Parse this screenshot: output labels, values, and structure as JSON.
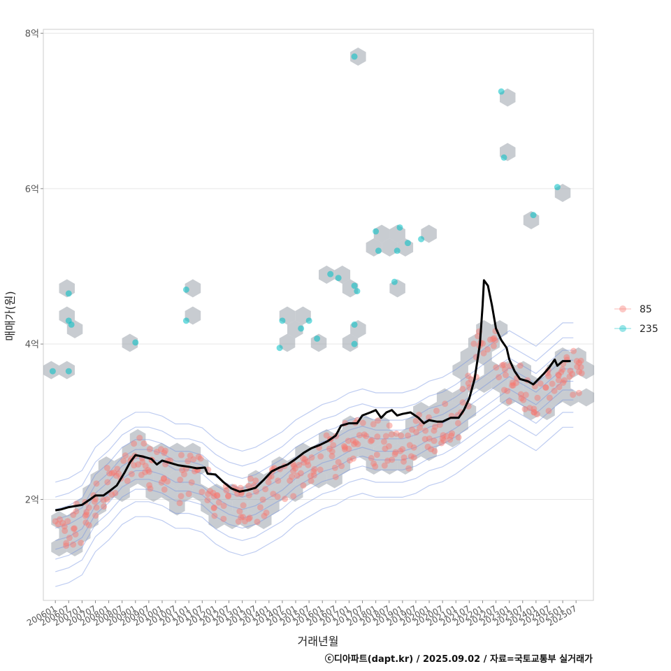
{
  "chart_data": {
    "type": "scatter",
    "xlabel": "거래년월",
    "ylabel": "매매가(원)",
    "credit": "ⓒ디아파트(dapt.kr) / 2025.09.02 / 자료=국토교통부 실거래가",
    "ylim": [
      0.7,
      8.05
    ],
    "xlim": [
      2005.55,
      2026.15
    ],
    "y_ticks": [
      {
        "value": 2,
        "label": "2억"
      },
      {
        "value": 4,
        "label": "4억"
      },
      {
        "value": 6,
        "label": "6억"
      },
      {
        "value": 8,
        "label": "8억"
      }
    ],
    "x_tick_labels": [
      "200601",
      "200607",
      "200701",
      "200707",
      "200801",
      "200807",
      "200901",
      "200907",
      "201001",
      "201007",
      "201101",
      "201107",
      "201201",
      "201207",
      "201301",
      "201307",
      "201401",
      "201407",
      "201501",
      "201507",
      "201601",
      "201607",
      "201701",
      "201707",
      "201801",
      "201807",
      "201901",
      "201907",
      "202001",
      "202007",
      "202101",
      "202107",
      "202201",
      "202207",
      "202301",
      "202307",
      "202401",
      "202407",
      "202501",
      "202507"
    ],
    "legend": [
      {
        "label": "85",
        "color": "#F8766D"
      },
      {
        "label": "235",
        "color": "#00BFC4"
      }
    ],
    "colors": {
      "hex": "#9aa3ab",
      "contour": "#6f8fe0",
      "trend": "#000000",
      "grid": "#e6e6e6"
    },
    "series_235": [
      [
        2005.9,
        3.65
      ],
      [
        2006.5,
        4.65
      ],
      [
        2006.5,
        4.3
      ],
      [
        2006.6,
        4.25
      ],
      [
        2006.5,
        3.65
      ],
      [
        2009.0,
        4.02
      ],
      [
        2010.9,
        4.7
      ],
      [
        2010.9,
        4.3
      ],
      [
        2014.5,
        4.3
      ],
      [
        2014.4,
        3.95
      ],
      [
        2015.2,
        4.2
      ],
      [
        2015.5,
        4.3
      ],
      [
        2015.8,
        4.07
      ],
      [
        2016.3,
        4.9
      ],
      [
        2016.6,
        4.85
      ],
      [
        2017.2,
        4.75
      ],
      [
        2017.3,
        4.68
      ],
      [
        2017.2,
        4.25
      ],
      [
        2017.2,
        4.0
      ],
      [
        2017.2,
        7.7
      ],
      [
        2018.0,
        5.45
      ],
      [
        2018.1,
        5.2
      ],
      [
        2018.8,
        5.2
      ],
      [
        2018.9,
        5.5
      ],
      [
        2019.2,
        5.3
      ],
      [
        2019.7,
        5.35
      ],
      [
        2018.7,
        4.8
      ],
      [
        2022.7,
        7.25
      ],
      [
        2022.8,
        6.4
      ],
      [
        2023.9,
        5.66
      ],
      [
        2024.8,
        6.02
      ]
    ],
    "series_85_bands": [
      [
        2006.0,
        1.55
      ],
      [
        2006.5,
        1.6
      ],
      [
        2007.0,
        1.7
      ],
      [
        2007.5,
        2.0
      ],
      [
        2008.0,
        2.15
      ],
      [
        2008.5,
        2.35
      ],
      [
        2009.0,
        2.45
      ],
      [
        2009.5,
        2.45
      ],
      [
        2010.0,
        2.4
      ],
      [
        2010.5,
        2.3
      ],
      [
        2011.0,
        2.3
      ],
      [
        2011.5,
        2.25
      ],
      [
        2012.0,
        2.1
      ],
      [
        2012.5,
        2.0
      ],
      [
        2013.0,
        1.95
      ],
      [
        2013.5,
        2.0
      ],
      [
        2014.0,
        2.1
      ],
      [
        2014.5,
        2.2
      ],
      [
        2015.0,
        2.35
      ],
      [
        2015.5,
        2.45
      ],
      [
        2016.0,
        2.55
      ],
      [
        2016.5,
        2.6
      ],
      [
        2017.0,
        2.7
      ],
      [
        2017.5,
        2.75
      ],
      [
        2018.0,
        2.7
      ],
      [
        2018.5,
        2.7
      ],
      [
        2019.0,
        2.7
      ],
      [
        2019.5,
        2.75
      ],
      [
        2020.0,
        2.85
      ],
      [
        2020.5,
        2.9
      ],
      [
        2021.0,
        3.0
      ],
      [
        2021.5,
        3.5
      ],
      [
        2022.0,
        4.2
      ],
      [
        2022.5,
        3.9
      ],
      [
        2023.0,
        3.5
      ],
      [
        2023.5,
        3.4
      ],
      [
        2024.0,
        3.3
      ],
      [
        2024.5,
        3.45
      ],
      [
        2025.0,
        3.6
      ],
      [
        2025.4,
        3.6
      ]
    ],
    "trend": [
      [
        2006.0,
        1.86
      ],
      [
        2006.2,
        1.87
      ],
      [
        2006.5,
        1.9
      ],
      [
        2007.0,
        1.93
      ],
      [
        2007.3,
        2.0
      ],
      [
        2007.5,
        2.05
      ],
      [
        2007.8,
        2.05
      ],
      [
        2008.0,
        2.1
      ],
      [
        2008.3,
        2.18
      ],
      [
        2008.6,
        2.35
      ],
      [
        2008.8,
        2.48
      ],
      [
        2009.0,
        2.57
      ],
      [
        2009.3,
        2.55
      ],
      [
        2009.6,
        2.52
      ],
      [
        2009.8,
        2.45
      ],
      [
        2010.0,
        2.5
      ],
      [
        2010.3,
        2.47
      ],
      [
        2010.6,
        2.44
      ],
      [
        2011.0,
        2.42
      ],
      [
        2011.3,
        2.4
      ],
      [
        2011.6,
        2.41
      ],
      [
        2011.7,
        2.33
      ],
      [
        2012.0,
        2.32
      ],
      [
        2012.3,
        2.22
      ],
      [
        2012.6,
        2.14
      ],
      [
        2012.9,
        2.1
      ],
      [
        2013.2,
        2.12
      ],
      [
        2013.5,
        2.15
      ],
      [
        2013.8,
        2.25
      ],
      [
        2014.1,
        2.36
      ],
      [
        2014.4,
        2.41
      ],
      [
        2014.7,
        2.45
      ],
      [
        2015.0,
        2.52
      ],
      [
        2015.3,
        2.6
      ],
      [
        2015.6,
        2.66
      ],
      [
        2015.9,
        2.7
      ],
      [
        2016.2,
        2.75
      ],
      [
        2016.5,
        2.82
      ],
      [
        2016.7,
        2.95
      ],
      [
        2017.0,
        2.98
      ],
      [
        2017.3,
        2.98
      ],
      [
        2017.5,
        3.08
      ],
      [
        2017.8,
        3.12
      ],
      [
        2018.0,
        3.15
      ],
      [
        2018.2,
        3.05
      ],
      [
        2018.4,
        3.12
      ],
      [
        2018.6,
        3.15
      ],
      [
        2018.8,
        3.08
      ],
      [
        2019.0,
        3.1
      ],
      [
        2019.3,
        3.12
      ],
      [
        2019.6,
        3.05
      ],
      [
        2019.8,
        2.98
      ],
      [
        2020.0,
        3.02
      ],
      [
        2020.3,
        3.0
      ],
      [
        2020.5,
        3.0
      ],
      [
        2020.8,
        3.05
      ],
      [
        2021.1,
        3.05
      ],
      [
        2021.3,
        3.15
      ],
      [
        2021.5,
        3.3
      ],
      [
        2021.7,
        3.55
      ],
      [
        2021.9,
        4.0
      ],
      [
        2022.0,
        4.5
      ],
      [
        2022.05,
        4.82
      ],
      [
        2022.2,
        4.75
      ],
      [
        2022.35,
        4.5
      ],
      [
        2022.5,
        4.2
      ],
      [
        2022.7,
        4.05
      ],
      [
        2022.9,
        3.95
      ],
      [
        2023.0,
        3.8
      ],
      [
        2023.2,
        3.65
      ],
      [
        2023.4,
        3.55
      ],
      [
        2023.7,
        3.52
      ],
      [
        2023.9,
        3.48
      ],
      [
        2024.1,
        3.55
      ],
      [
        2024.3,
        3.62
      ],
      [
        2024.5,
        3.7
      ],
      [
        2024.7,
        3.8
      ],
      [
        2024.8,
        3.72
      ],
      [
        2025.0,
        3.78
      ],
      [
        2025.3,
        3.78
      ]
    ]
  }
}
